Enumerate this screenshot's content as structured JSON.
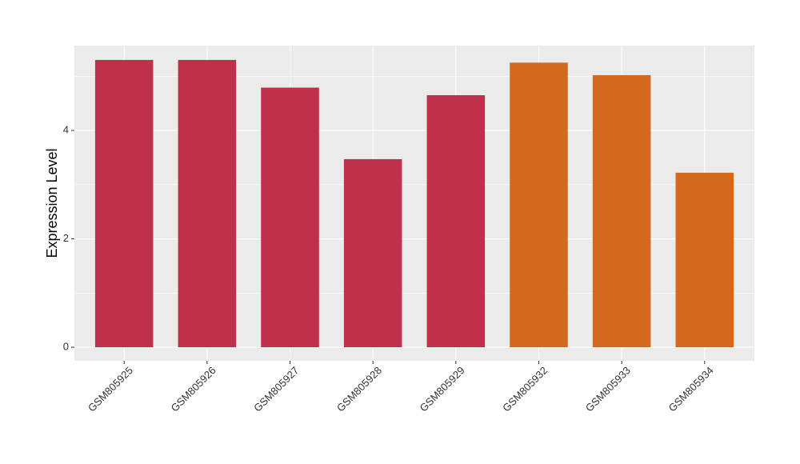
{
  "chart_data": {
    "type": "bar",
    "y_label": "Expression Level",
    "categories": [
      "GSM805925",
      "GSM805926",
      "GSM805927",
      "GSM805928",
      "GSM805929",
      "GSM805932",
      "GSM805933",
      "GSM805934"
    ],
    "values": [
      5.3,
      5.3,
      4.79,
      3.47,
      4.65,
      5.25,
      5.02,
      3.22
    ],
    "colors": [
      "#c0304a",
      "#c0304a",
      "#c0304a",
      "#c0304a",
      "#c0304a",
      "#d2691e",
      "#d2691e",
      "#d2691e"
    ],
    "ylim": [
      -0.25,
      5.565
    ],
    "yticks": [
      0,
      2,
      4
    ],
    "grid": true,
    "minor_grid": true
  }
}
